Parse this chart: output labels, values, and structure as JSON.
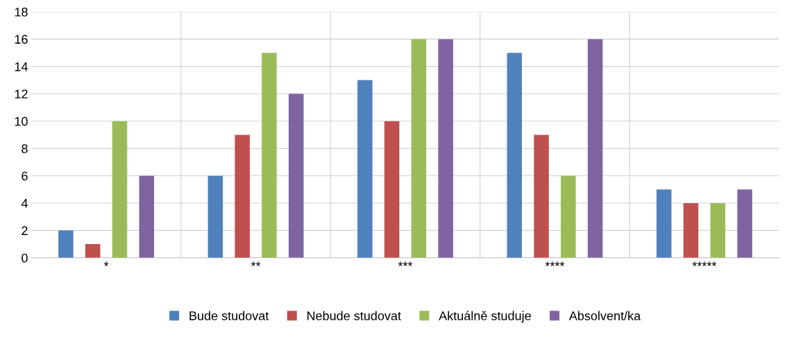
{
  "chart_data": {
    "type": "bar",
    "categories": [
      "*",
      "**",
      "***",
      "****",
      "*****"
    ],
    "series": [
      {
        "name": "Bude studovat",
        "color": "#4f81bd",
        "values": [
          2,
          6,
          13,
          15,
          5
        ]
      },
      {
        "name": "Nebude studovat",
        "color": "#c0504d",
        "values": [
          1,
          9,
          10,
          9,
          4
        ]
      },
      {
        "name": "Aktuálně studuje",
        "color": "#9bbb59",
        "values": [
          10,
          15,
          16,
          6,
          4
        ]
      },
      {
        "name": "Absolvent/ka",
        "color": "#8064a2",
        "values": [
          6,
          12,
          16,
          16,
          5
        ]
      }
    ],
    "ylim": [
      0,
      18
    ],
    "yticks": [
      0,
      2,
      4,
      6,
      8,
      10,
      12,
      14,
      16,
      18
    ],
    "grid": true,
    "legend": "bottom"
  }
}
